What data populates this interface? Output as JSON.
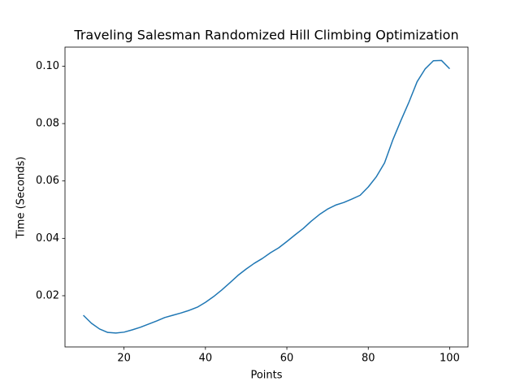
{
  "chart_data": {
    "type": "line",
    "title": "Traveling Salesman Randomized Hill Climbing Optimization",
    "xlabel": "Points",
    "ylabel": "Time (Seconds)",
    "x": [
      10,
      12,
      14,
      16,
      18,
      20,
      22,
      24,
      26,
      28,
      30,
      32,
      34,
      36,
      38,
      40,
      42,
      44,
      46,
      48,
      50,
      52,
      54,
      56,
      58,
      60,
      62,
      64,
      66,
      68,
      70,
      72,
      74,
      76,
      78,
      80,
      82,
      84,
      86,
      88,
      90,
      92,
      94,
      96,
      98,
      100
    ],
    "values": [
      0.0132,
      0.0104,
      0.0084,
      0.0072,
      0.007,
      0.0073,
      0.0081,
      0.009,
      0.0101,
      0.0112,
      0.0124,
      0.0132,
      0.014,
      0.0149,
      0.016,
      0.0177,
      0.0197,
      0.022,
      0.0245,
      0.0271,
      0.0293,
      0.0313,
      0.033,
      0.035,
      0.0367,
      0.0389,
      0.0412,
      0.0434,
      0.046,
      0.0483,
      0.0502,
      0.0516,
      0.0525,
      0.0537,
      0.055,
      0.0579,
      0.0615,
      0.0663,
      0.0742,
      0.081,
      0.0875,
      0.0946,
      0.0991,
      0.1019,
      0.102,
      0.0991
    ],
    "color": "#1f77b4",
    "xlim": [
      5.5,
      104.5
    ],
    "xticks": [
      20,
      40,
      60,
      80,
      100
    ],
    "ylim": [
      0.00215,
      0.10665
    ],
    "yticks": [
      0.02,
      0.04,
      0.06,
      0.08,
      {
        "value": 0.1,
        "label": "0.10"
      }
    ],
    "grid": false
  }
}
